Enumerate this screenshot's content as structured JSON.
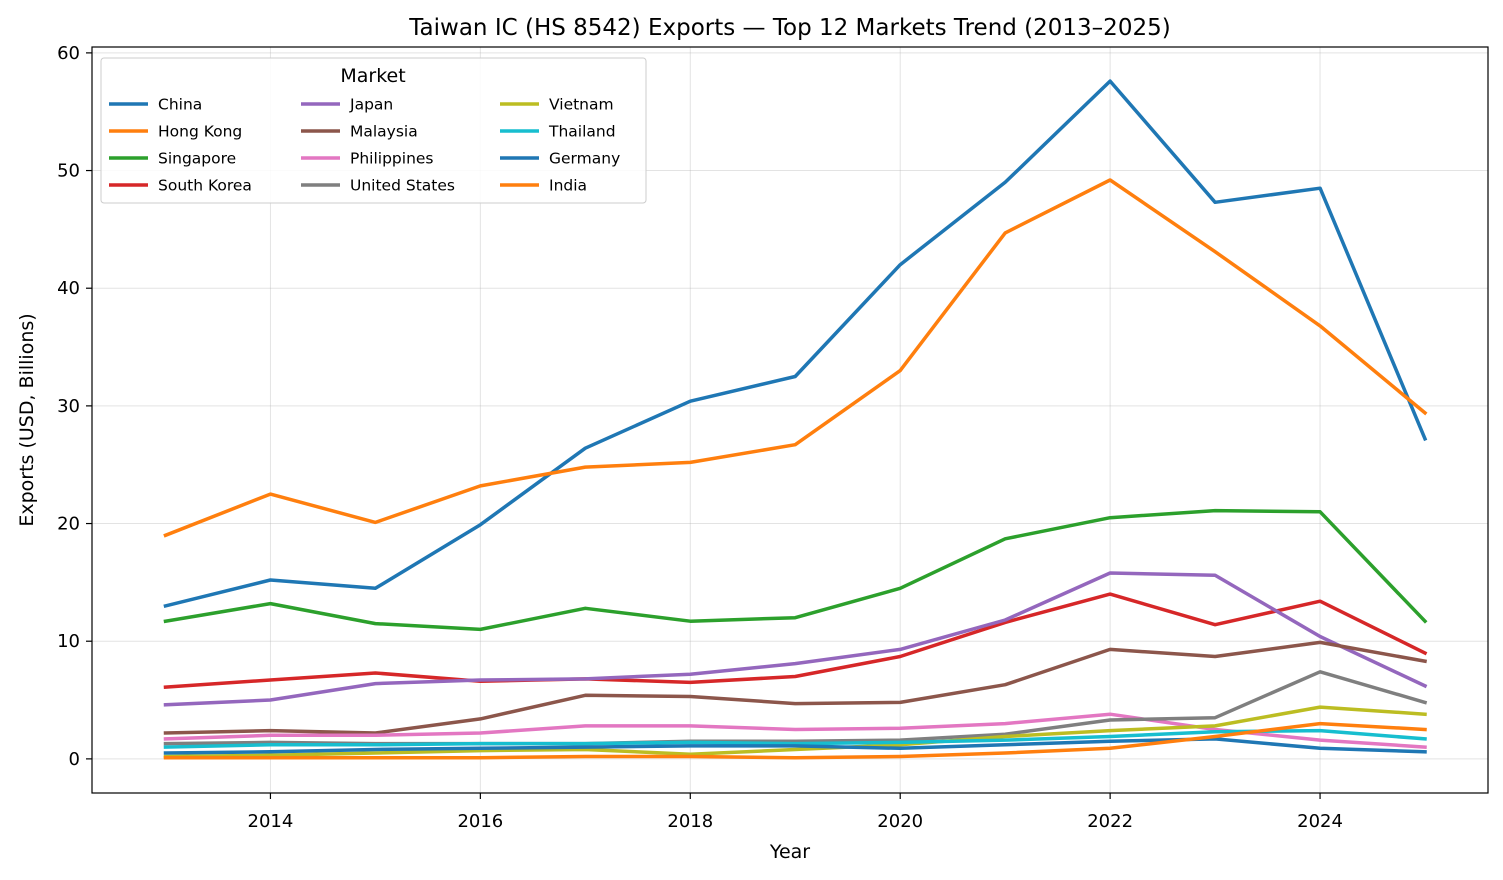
{
  "chart_data": {
    "type": "line",
    "title": "Taiwan IC (HS 8542) Exports — Top 12 Markets Trend (2013–2025)",
    "xlabel": "Year",
    "ylabel": "Exports (USD, Billions)",
    "xlim": [
      2012.3,
      2025.6
    ],
    "ylim": [
      -2.9,
      60.5
    ],
    "x_ticks": [
      2014,
      2016,
      2018,
      2020,
      2022,
      2024
    ],
    "y_ticks": [
      0,
      10,
      20,
      30,
      40,
      50,
      60
    ],
    "grid": true,
    "legend": {
      "title": "Market",
      "placement": "top-left",
      "columns": 3
    },
    "x": [
      2013,
      2014,
      2015,
      2016,
      2017,
      2018,
      2019,
      2020,
      2021,
      2022,
      2023,
      2024,
      2025
    ],
    "series": [
      {
        "name": "China",
        "color": "#1f77b4",
        "values": [
          13.0,
          15.2,
          14.5,
          19.9,
          26.4,
          30.4,
          32.5,
          42.0,
          49.0,
          57.6,
          47.3,
          48.5,
          27.2
        ]
      },
      {
        "name": "Hong Kong",
        "color": "#ff7f0e",
        "values": [
          19.0,
          22.5,
          20.1,
          23.2,
          24.8,
          25.2,
          26.7,
          33.0,
          44.7,
          49.2,
          43.1,
          36.8,
          29.4
        ]
      },
      {
        "name": "Singapore",
        "color": "#2ca02c",
        "values": [
          11.7,
          13.2,
          11.5,
          11.0,
          12.8,
          11.7,
          12.0,
          14.5,
          18.7,
          20.5,
          21.1,
          21.0,
          11.7
        ]
      },
      {
        "name": "South Korea",
        "color": "#d62728",
        "values": [
          6.1,
          6.7,
          7.3,
          6.6,
          6.8,
          6.5,
          7.0,
          8.7,
          11.6,
          14.0,
          11.4,
          13.4,
          9.0
        ]
      },
      {
        "name": "Japan",
        "color": "#9467bd",
        "values": [
          4.6,
          5.0,
          6.4,
          6.7,
          6.8,
          7.2,
          8.1,
          9.3,
          11.8,
          15.8,
          15.6,
          10.4,
          6.2
        ]
      },
      {
        "name": "Malaysia",
        "color": "#8c564b",
        "values": [
          2.2,
          2.4,
          2.2,
          3.4,
          5.4,
          5.3,
          4.7,
          4.8,
          6.3,
          9.3,
          8.7,
          9.9,
          8.3
        ]
      },
      {
        "name": "Philippines",
        "color": "#e377c2",
        "values": [
          1.7,
          2.0,
          2.0,
          2.2,
          2.8,
          2.8,
          2.5,
          2.6,
          3.0,
          3.8,
          2.5,
          1.6,
          1.0
        ]
      },
      {
        "name": "United States",
        "color": "#7f7f7f",
        "values": [
          1.3,
          1.4,
          1.3,
          1.3,
          1.3,
          1.5,
          1.5,
          1.6,
          2.1,
          3.3,
          3.5,
          7.4,
          4.8
        ]
      },
      {
        "name": "Vietnam",
        "color": "#bcbd22",
        "values": [
          0.2,
          0.3,
          0.5,
          0.7,
          0.8,
          0.4,
          0.8,
          1.2,
          1.9,
          2.4,
          2.8,
          4.4,
          3.8
        ]
      },
      {
        "name": "Thailand",
        "color": "#17becf",
        "values": [
          1.0,
          1.2,
          1.2,
          1.3,
          1.3,
          1.4,
          1.3,
          1.4,
          1.6,
          1.9,
          2.3,
          2.4,
          1.7
        ]
      },
      {
        "name": "Germany",
        "color": "#1f77b4",
        "values": [
          0.5,
          0.6,
          0.8,
          0.9,
          1.0,
          1.1,
          1.1,
          0.9,
          1.2,
          1.5,
          1.7,
          0.9,
          0.6
        ]
      },
      {
        "name": "India",
        "color": "#ff7f0e",
        "values": [
          0.1,
          0.1,
          0.1,
          0.1,
          0.2,
          0.2,
          0.1,
          0.2,
          0.5,
          0.9,
          1.9,
          3.0,
          2.5
        ]
      }
    ]
  }
}
